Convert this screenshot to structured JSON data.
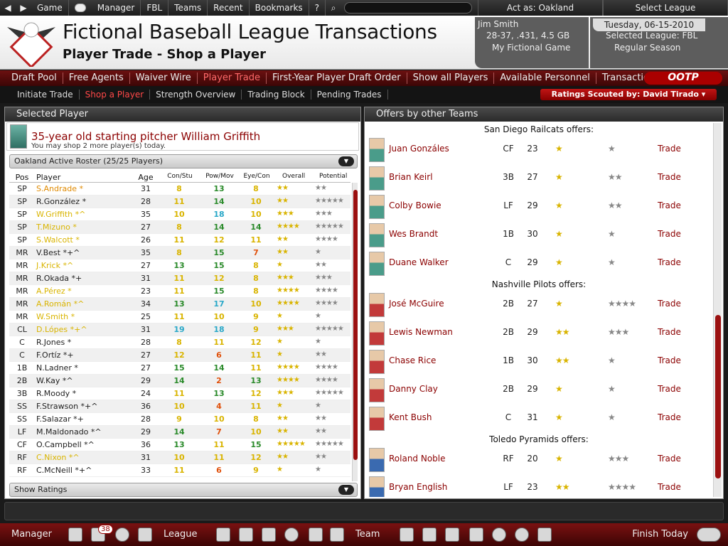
{
  "topbar": {
    "items": [
      "Game",
      "Manager",
      "FBL",
      "Teams",
      "Recent",
      "Bookmarks",
      "?"
    ],
    "act_as": "Act as: Oakland",
    "select_league": "Select League"
  },
  "header": {
    "title": "Fictional Baseball League Transactions",
    "subtitle": "Player Trade - Shop a Player",
    "user_name": "Jim Smith",
    "user_record": "28-37, .431, 4.5 GB",
    "game_name": "My Fictional Game",
    "date": "Tuesday, 06-15-2010",
    "selected_league": "Selected League: FBL",
    "season": "Regular Season"
  },
  "nav": {
    "items": [
      "Draft Pool",
      "Free Agents",
      "Waiver Wire",
      "Player Trade",
      "First-Year Player Draft Order",
      "Show all Players",
      "Available Personnel",
      "Transaction News"
    ],
    "logo": "OOTP"
  },
  "subnav": {
    "items": [
      "Initiate Trade",
      "Shop a Player",
      "Strength Overview",
      "Trading Block",
      "Pending Trades"
    ],
    "scouted_by": "Ratings Scouted by: David Tirado"
  },
  "left_panel": {
    "title": "Selected Player",
    "player_desc": "35-year old starting pitcher William Griffith",
    "shop_note": "You may shop 2 more player(s) today.",
    "roster_dropdown": "Oakland Active Roster (25/25 Players)",
    "show_ratings": "Show Ratings",
    "headers": {
      "pos": "Pos",
      "player": "Player",
      "age": "Age",
      "con": "Con/Stu",
      "pow": "Pow/Mov",
      "eye": "Eye/Con",
      "overall": "Overall",
      "potential": "Potential"
    },
    "roster": [
      {
        "pos": "SP",
        "name": "S.Andrade *",
        "age": "31",
        "con": "8",
        "pow": "13",
        "eye": "8",
        "ovr": "★★",
        "pot": "★★",
        "name_color": "#e08a00"
      },
      {
        "pos": "SP",
        "name": "R.González *",
        "age": "28",
        "con": "11",
        "pow": "14",
        "eye": "10",
        "ovr": "★★",
        "pot": "★★★★★",
        "name_color": "#222"
      },
      {
        "pos": "SP",
        "name": "W.Griffith *^",
        "age": "35",
        "con": "10",
        "pow": "18",
        "eye": "10",
        "ovr": "★★★",
        "pot": "★★★",
        "name_color": "#d9b400"
      },
      {
        "pos": "SP",
        "name": "T.Mizuno *",
        "age": "27",
        "con": "8",
        "pow": "14",
        "eye": "14",
        "ovr": "★★★★",
        "pot": "★★★★★",
        "name_color": "#d9b400"
      },
      {
        "pos": "SP",
        "name": "S.Walcott *",
        "age": "26",
        "con": "11",
        "pow": "12",
        "eye": "11",
        "ovr": "★★",
        "pot": "★★★★",
        "name_color": "#d9b400"
      },
      {
        "pos": "MR",
        "name": "V.Best *+^",
        "age": "35",
        "con": "8",
        "pow": "15",
        "eye": "7",
        "ovr": "★★",
        "pot": "★",
        "name_color": "#222"
      },
      {
        "pos": "MR",
        "name": "J.Krick *^",
        "age": "27",
        "con": "13",
        "pow": "15",
        "eye": "8",
        "ovr": "★",
        "pot": "★★",
        "name_color": "#d9b400"
      },
      {
        "pos": "MR",
        "name": "R.Okada *+",
        "age": "31",
        "con": "11",
        "pow": "12",
        "eye": "8",
        "ovr": "★★★",
        "pot": "★★★",
        "name_color": "#222"
      },
      {
        "pos": "MR",
        "name": "A.Pérez *",
        "age": "23",
        "con": "11",
        "pow": "15",
        "eye": "8",
        "ovr": "★★★★",
        "pot": "★★★★",
        "name_color": "#d9b400"
      },
      {
        "pos": "MR",
        "name": "A.Román *^",
        "age": "34",
        "con": "13",
        "pow": "17",
        "eye": "10",
        "ovr": "★★★★",
        "pot": "★★★★",
        "name_color": "#d9b400"
      },
      {
        "pos": "MR",
        "name": "W.Smith *",
        "age": "25",
        "con": "11",
        "pow": "10",
        "eye": "9",
        "ovr": "★",
        "pot": "★",
        "name_color": "#d9b400"
      },
      {
        "pos": "CL",
        "name": "D.Lópes *+^",
        "age": "31",
        "con": "19",
        "pow": "18",
        "eye": "9",
        "ovr": "★★★",
        "pot": "★★★★★",
        "name_color": "#d9b400"
      },
      {
        "pos": "C",
        "name": "R.Jones *",
        "age": "28",
        "con": "8",
        "pow": "11",
        "eye": "12",
        "ovr": "★",
        "pot": "★",
        "name_color": "#222"
      },
      {
        "pos": "C",
        "name": "F.Ortíz *+",
        "age": "27",
        "con": "12",
        "pow": "6",
        "eye": "11",
        "ovr": "★",
        "pot": "★★",
        "name_color": "#222"
      },
      {
        "pos": "1B",
        "name": "N.Ladner *",
        "age": "27",
        "con": "15",
        "pow": "14",
        "eye": "11",
        "ovr": "★★★★",
        "pot": "★★★★",
        "name_color": "#222"
      },
      {
        "pos": "2B",
        "name": "W.Kay *^",
        "age": "29",
        "con": "14",
        "pow": "2",
        "eye": "13",
        "ovr": "★★★★",
        "pot": "★★★★",
        "name_color": "#222"
      },
      {
        "pos": "3B",
        "name": "R.Moody *",
        "age": "24",
        "con": "11",
        "pow": "13",
        "eye": "12",
        "ovr": "★★★",
        "pot": "★★★★★",
        "name_color": "#222"
      },
      {
        "pos": "SS",
        "name": "F.Strawson *+^",
        "age": "36",
        "con": "10",
        "pow": "4",
        "eye": "11",
        "ovr": "★",
        "pot": "★",
        "name_color": "#222"
      },
      {
        "pos": "SS",
        "name": "F.Salazar *+",
        "age": "28",
        "con": "9",
        "pow": "10",
        "eye": "8",
        "ovr": "★★",
        "pot": "★★",
        "name_color": "#222"
      },
      {
        "pos": "LF",
        "name": "M.Maldonado *^",
        "age": "29",
        "con": "14",
        "pow": "7",
        "eye": "10",
        "ovr": "★★",
        "pot": "★★",
        "name_color": "#222"
      },
      {
        "pos": "CF",
        "name": "O.Campbell *^",
        "age": "36",
        "con": "13",
        "pow": "11",
        "eye": "15",
        "ovr": "★★★★★",
        "pot": "★★★★★",
        "name_color": "#222"
      },
      {
        "pos": "RF",
        "name": "C.Nixon *^",
        "age": "31",
        "con": "10",
        "pow": "11",
        "eye": "12",
        "ovr": "★★",
        "pot": "★★",
        "name_color": "#d9b400"
      },
      {
        "pos": "RF",
        "name": "C.McNeill *+^",
        "age": "33",
        "con": "11",
        "pow": "6",
        "eye": "9",
        "ovr": "★",
        "pot": "★",
        "name_color": "#222"
      }
    ]
  },
  "right_panel": {
    "title": "Offers by other Teams",
    "trade_label": "Trade",
    "groups": [
      {
        "team_header": "San Diego Railcats offers:",
        "photo": "#4a9c8a",
        "players": [
          {
            "name": "Juan Gonzáles",
            "pos": "CF",
            "age": "23",
            "ovr": "★",
            "pot": "★"
          },
          {
            "name": "Brian Keirl",
            "pos": "3B",
            "age": "27",
            "ovr": "★",
            "pot": "★★"
          },
          {
            "name": "Colby Bowie",
            "pos": "LF",
            "age": "29",
            "ovr": "★",
            "pot": "★★"
          },
          {
            "name": "Wes Brandt",
            "pos": "1B",
            "age": "30",
            "ovr": "★",
            "pot": "★"
          },
          {
            "name": "Duane Walker",
            "pos": "C",
            "age": "29",
            "ovr": "★",
            "pot": "★"
          }
        ]
      },
      {
        "team_header": "Nashville Pilots offers:",
        "photo": "#c23a3a",
        "players": [
          {
            "name": "José McGuire",
            "pos": "2B",
            "age": "27",
            "ovr": "★",
            "pot": "★★★★"
          },
          {
            "name": "Lewis Newman",
            "pos": "2B",
            "age": "29",
            "ovr": "★★",
            "pot": "★★★"
          },
          {
            "name": "Chase Rice",
            "pos": "1B",
            "age": "30",
            "ovr": "★★",
            "pot": "★"
          },
          {
            "name": "Danny Clay",
            "pos": "2B",
            "age": "29",
            "ovr": "★",
            "pot": "★"
          },
          {
            "name": "Kent Bush",
            "pos": "C",
            "age": "31",
            "ovr": "★",
            "pot": "★"
          }
        ]
      },
      {
        "team_header": "Toledo Pyramids offers:",
        "photo": "#3a6ab0",
        "players": [
          {
            "name": "Roland Noble",
            "pos": "RF",
            "age": "20",
            "ovr": "★",
            "pot": "★★★"
          },
          {
            "name": "Bryan English",
            "pos": "LF",
            "age": "23",
            "ovr": "★★",
            "pot": "★★★★"
          }
        ]
      }
    ]
  },
  "bottombar": {
    "manager": "Manager",
    "league": "League",
    "team": "Team",
    "mail_count": "38",
    "finish": "Finish Today"
  },
  "colors": {
    "accent_red": "#8b0000",
    "star_gold": "#d9b400",
    "rating_yellow": "#d9b400",
    "rating_green": "#2a8a2a",
    "rating_cyan": "#2aa8c8",
    "rating_orange": "#e0500a"
  }
}
